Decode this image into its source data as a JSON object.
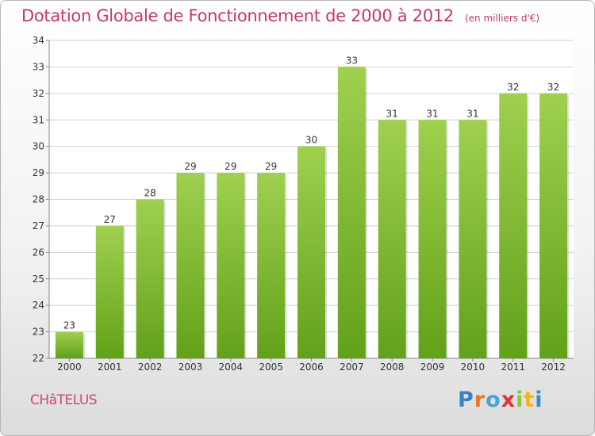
{
  "chart_title": "Dotation Globale de Fonctionnement de 2000 à 2012",
  "chart_unit": "(en milliers d'€)",
  "commune": "CHâTELUS",
  "logo_text": "Proxiti",
  "colors": {
    "title": "#c8366f",
    "bar_top": "#9fd04f",
    "bar_bottom": "#62a11a",
    "grid": "#d2d2d2"
  },
  "chart_data": {
    "type": "bar",
    "title": "Dotation Globale de Fonctionnement de 2000 à 2012",
    "xlabel": "",
    "ylabel": "",
    "ylim": [
      22,
      34
    ],
    "yticks": [
      22,
      23,
      24,
      25,
      26,
      27,
      28,
      29,
      30,
      31,
      32,
      33,
      34
    ],
    "grid": true,
    "categories": [
      "2000",
      "2001",
      "2002",
      "2003",
      "2004",
      "2005",
      "2006",
      "2007",
      "2008",
      "2009",
      "2010",
      "2011",
      "2012"
    ],
    "values": [
      23,
      27,
      28,
      29,
      29,
      29,
      30,
      33,
      31,
      31,
      31,
      32,
      32
    ]
  }
}
